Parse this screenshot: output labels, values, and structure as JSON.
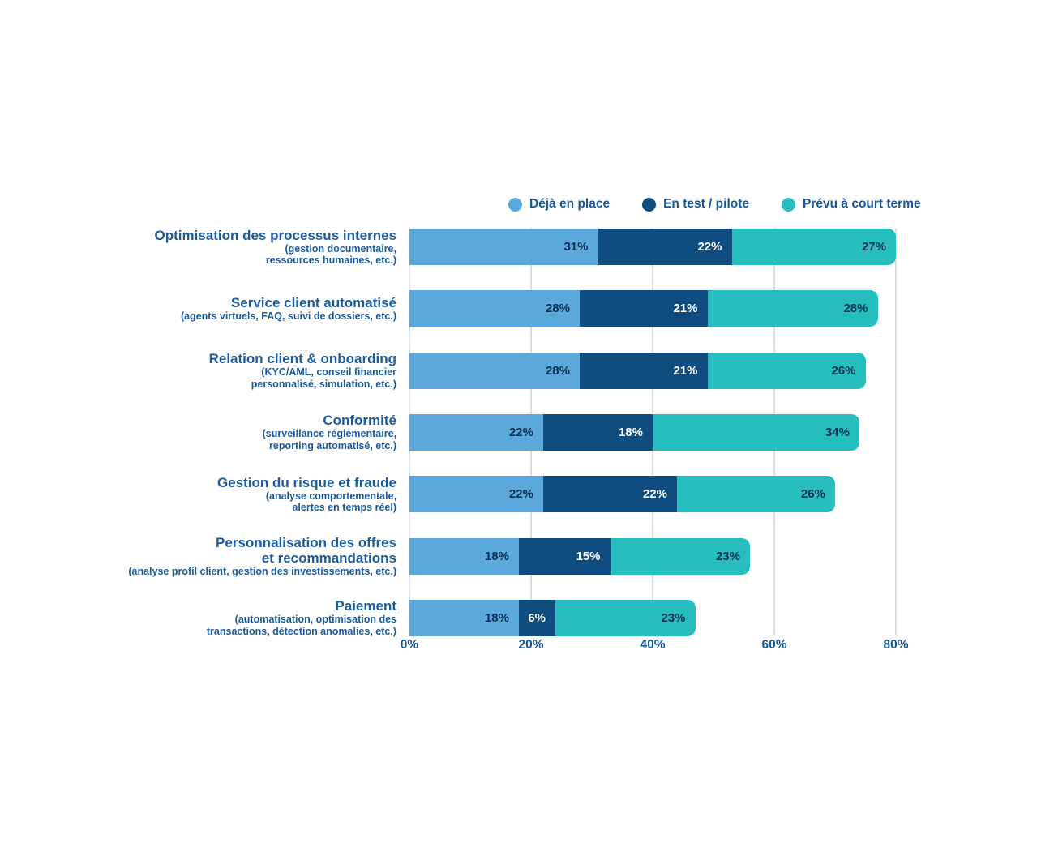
{
  "chart_data": {
    "type": "bar",
    "orientation": "horizontal",
    "stacked": true,
    "legend_position": "top",
    "grid": "vertical",
    "value_suffix": "%",
    "xlim": [
      0,
      80
    ],
    "x_ticks": [
      {
        "value": 0,
        "label": "0%"
      },
      {
        "value": 20,
        "label": "20%"
      },
      {
        "value": 40,
        "label": "40%"
      },
      {
        "value": 60,
        "label": "60%"
      },
      {
        "value": 80,
        "label": "80%"
      }
    ],
    "series": [
      {
        "name": "Déjà en place",
        "color": "#5BA8DB",
        "value_text_color": "#0A3055",
        "values": [
          31,
          28,
          28,
          22,
          22,
          18,
          18
        ]
      },
      {
        "name": "En test / pilote",
        "color": "#0F4C80",
        "value_text_color": "#FFFFFF",
        "values": [
          22,
          21,
          21,
          18,
          22,
          15,
          6
        ]
      },
      {
        "name": "Prévu à court terme",
        "color": "#27BEBF",
        "value_text_color": "#0A3055",
        "values": [
          27,
          28,
          26,
          34,
          26,
          23,
          23
        ]
      }
    ],
    "categories": [
      {
        "title_lines": [
          "Optimisation des processus internes"
        ],
        "subtitle_lines": [
          "(gestion documentaire,",
          "ressources humaines, etc.)"
        ]
      },
      {
        "title_lines": [
          "Service client automatisé"
        ],
        "subtitle_lines": [
          "(agents virtuels, FAQ, suivi de dossiers, etc.)"
        ]
      },
      {
        "title_lines": [
          "Relation client & onboarding"
        ],
        "subtitle_lines": [
          "(KYC/AML, conseil financier",
          "personnalisé, simulation, etc.)"
        ]
      },
      {
        "title_lines": [
          "Conformité"
        ],
        "subtitle_lines": [
          "(surveillance réglementaire,",
          "reporting automatisé, etc.)"
        ]
      },
      {
        "title_lines": [
          "Gestion du risque et fraude"
        ],
        "subtitle_lines": [
          "(analyse comportementale,",
          "alertes en temps réel)"
        ]
      },
      {
        "title_lines": [
          "Personnalisation des offres",
          "et recommandations"
        ],
        "subtitle_lines": [
          "(analyse profil client, gestion des investissements, etc.)"
        ]
      },
      {
        "title_lines": [
          "Paiement"
        ],
        "subtitle_lines": [
          "(automatisation, optimisation des",
          "transactions, détection anomalies, etc.)"
        ]
      }
    ],
    "colors": {
      "background": "#FFFFFF",
      "grid": "#D8DFE8",
      "category_label": "#1A5C9E",
      "axis_label": "#17579A",
      "legend_text": "#17579A"
    }
  }
}
